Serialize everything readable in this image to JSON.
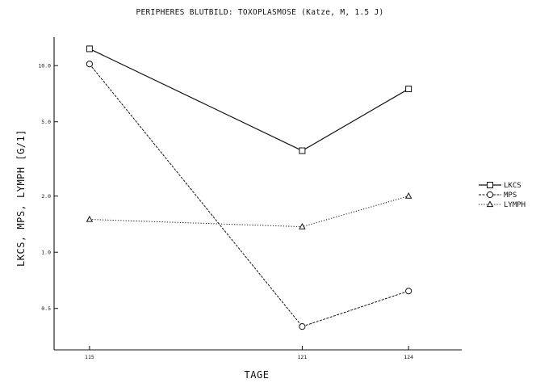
{
  "chart_data": {
    "type": "line",
    "title": "PERIPHERES BLUTBILD:  TOXOPLASMOSE (Katze, M, 1.5 J)",
    "xlabel": "TAGE",
    "ylabel": "LKCS,  MPS,  LYMPH  [G/1]",
    "y_scale": "log",
    "ylim": [
      0.3,
      14.2
    ],
    "xlim": [
      114,
      125.5
    ],
    "grid": false,
    "legend_position": "right",
    "x_ticks": [
      {
        "value": 115,
        "label": "115"
      },
      {
        "value": 121,
        "label": "121"
      },
      {
        "value": 124,
        "label": "124"
      }
    ],
    "y_ticks": [
      {
        "value": 0.5,
        "label": "0.5"
      },
      {
        "value": 1.0,
        "label": "1.0"
      },
      {
        "value": 2.0,
        "label": "2.0"
      },
      {
        "value": 5.0,
        "label": "5.0"
      },
      {
        "value": 10.0,
        "label": "10.0"
      }
    ],
    "x": [
      115,
      121,
      124
    ],
    "series": [
      {
        "name": "LKCS",
        "values": [
          12.3,
          3.5,
          7.5
        ],
        "marker": "square",
        "line": "solid"
      },
      {
        "name": "MPS",
        "values": [
          10.2,
          0.4,
          0.62
        ],
        "marker": "circle",
        "line": "dashed"
      },
      {
        "name": "LYMPH",
        "values": [
          1.5,
          1.37,
          2.0
        ],
        "marker": "triangle",
        "line": "dotted"
      }
    ]
  }
}
